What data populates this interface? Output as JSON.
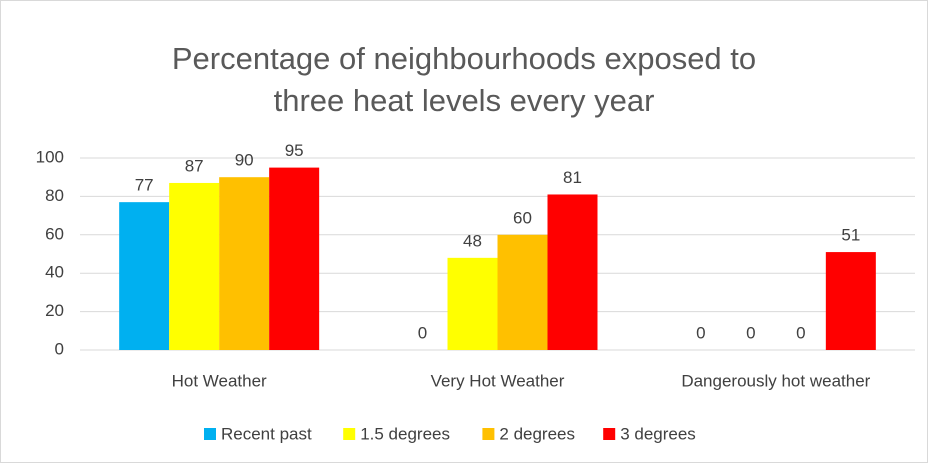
{
  "chart_data": {
    "type": "bar",
    "title": "Percentage of neighbourhoods exposed to three heat levels every year",
    "categories": [
      "Hot Weather",
      "Very Hot Weather",
      "Dangerously hot weather"
    ],
    "series": [
      {
        "name": "Recent past",
        "color": "#00b0f0",
        "values": [
          77,
          0,
          0
        ]
      },
      {
        "name": "1.5 degrees",
        "color": "#ffff00",
        "values": [
          87,
          48,
          0
        ]
      },
      {
        "name": "2 degrees",
        "color": "#ffc000",
        "values": [
          90,
          60,
          0
        ]
      },
      {
        "name": "3 degrees",
        "color": "#ff0000",
        "values": [
          95,
          81,
          51
        ]
      }
    ],
    "ylim": [
      0,
      100
    ],
    "yticks": [
      0,
      20,
      40,
      60,
      80,
      100
    ],
    "grid": true,
    "legend": "bottom"
  }
}
